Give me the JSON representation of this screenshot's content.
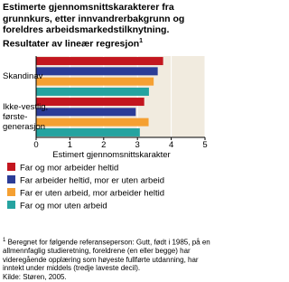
{
  "chart_data": {
    "type": "barh",
    "title": "Estimerte gjennomsnittskarakterer fra grunnkurs,  etter innvandrerbakgrunn og foreldres arbeidsmarkedstilknytning. Resultater av lineær regresjon",
    "title_footnote_mark": "1",
    "categories": [
      "Skandinav",
      "Ikke-vestlig,\nførste-\ngenerasjon"
    ],
    "series": [
      {
        "name": "Far og mor arbeider heltid",
        "color": "#c3161f",
        "values": [
          3.76,
          3.2
        ]
      },
      {
        "name": "Far arbeider heltid, mor er uten arbeid",
        "color": "#2b3c97",
        "values": [
          3.6,
          2.95
        ]
      },
      {
        "name": "Far er uten arbeid, mor arbeider heltid",
        "color": "#f5a032",
        "values": [
          3.48,
          3.33
        ]
      },
      {
        "name": "Far og mor uten arbeid",
        "color": "#25a3a0",
        "values": [
          3.34,
          3.07
        ]
      }
    ],
    "xlabel": "Estimert gjennomsnittskarakter",
    "xlim": [
      0,
      5
    ],
    "xticks": [
      0,
      1,
      2,
      3,
      4,
      5
    ],
    "grid": true,
    "footnote_mark": "1",
    "footnote": "Beregnet for følgende referanseperson: Gutt, født i 1985, på en allmennfaglig studieretning, foreldrene (en eller begge) har videregående opplæring som høyeste fullførte utdanning, har inntekt under middels (tredje laveste decil).",
    "source": "Kilde: Støren, 2005."
  }
}
